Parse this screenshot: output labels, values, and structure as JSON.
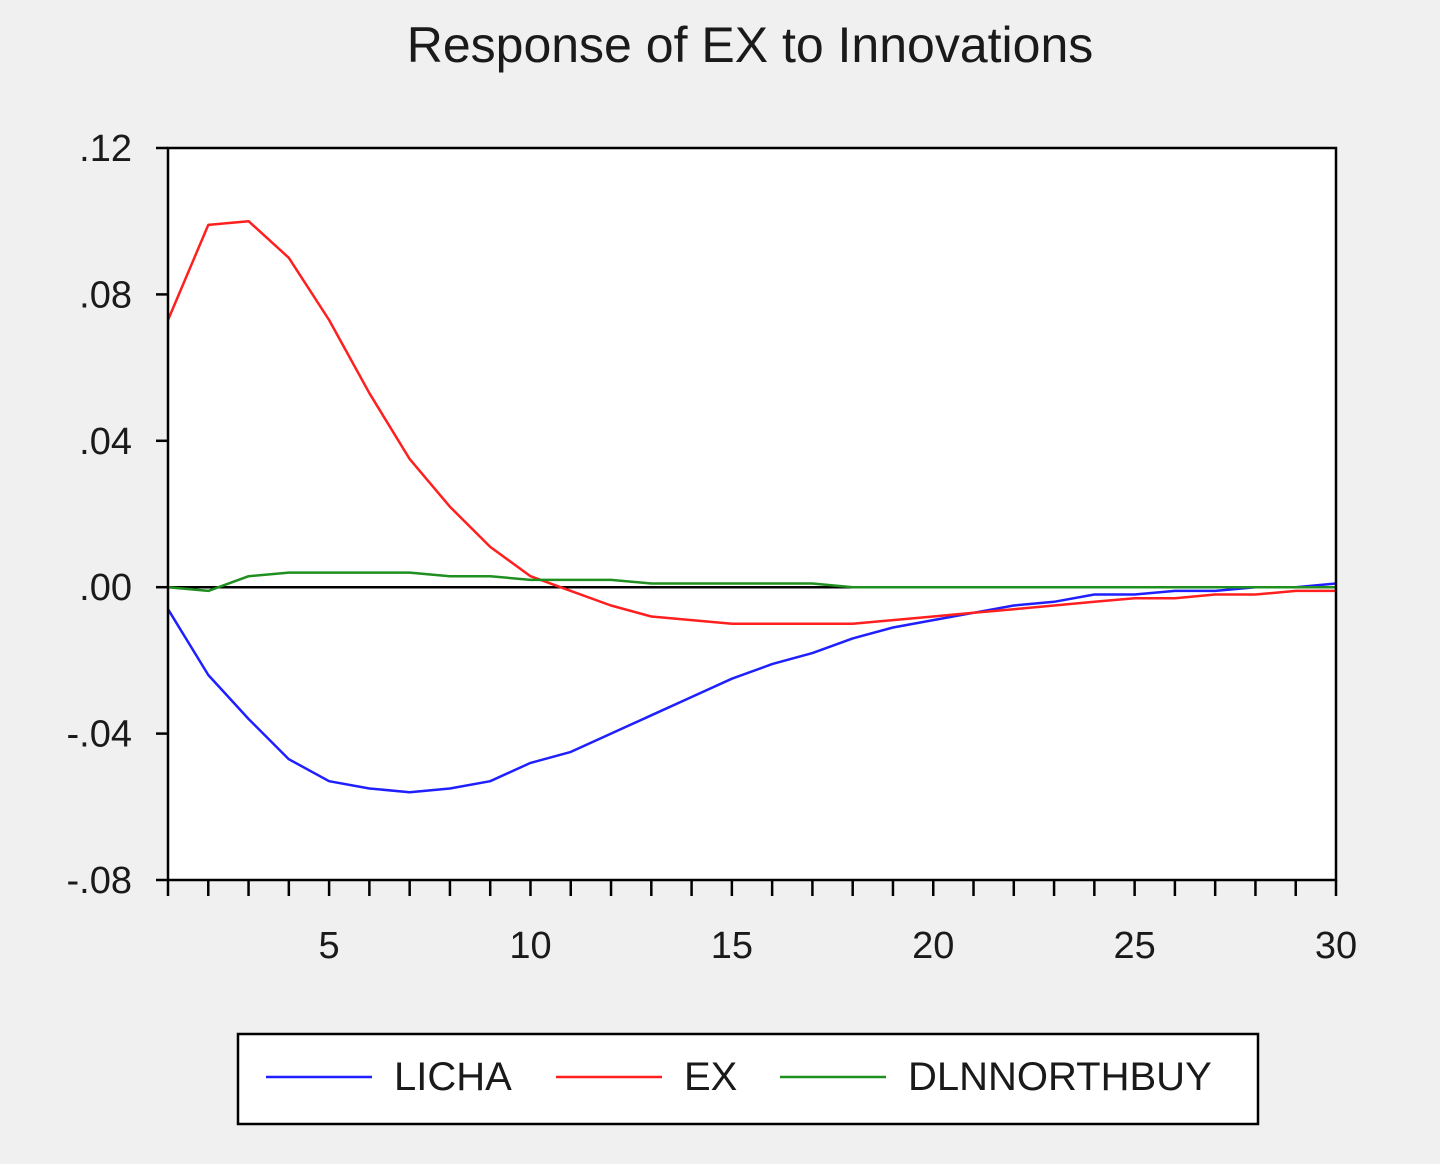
{
  "chart_data": {
    "type": "line",
    "title": "Response of EX to Innovations",
    "xlabel": "",
    "ylabel": "",
    "xlim": [
      1,
      30
    ],
    "ylim": [
      -0.08,
      0.12
    ],
    "x_ticks": [
      5,
      10,
      15,
      20,
      25,
      30
    ],
    "x_tick_labels": [
      "5",
      "10",
      "15",
      "20",
      "25",
      "30"
    ],
    "y_ticks": [
      0.12,
      0.08,
      0.04,
      0.0,
      -0.04,
      -0.08
    ],
    "y_tick_labels": [
      ".12",
      ".08",
      ".04",
      ".00",
      "-.04",
      "-.08"
    ],
    "grid": false,
    "legend_position": "bottom",
    "x": [
      1,
      2,
      3,
      4,
      5,
      6,
      7,
      8,
      9,
      10,
      11,
      12,
      13,
      14,
      15,
      16,
      17,
      18,
      19,
      20,
      21,
      22,
      23,
      24,
      25,
      26,
      27,
      28,
      29,
      30
    ],
    "series": [
      {
        "name": "LICHA",
        "color": "#1f1fff",
        "values": [
          -0.006,
          -0.024,
          -0.036,
          -0.047,
          -0.053,
          -0.055,
          -0.056,
          -0.055,
          -0.053,
          -0.048,
          -0.045,
          -0.04,
          -0.035,
          -0.03,
          -0.025,
          -0.021,
          -0.018,
          -0.014,
          -0.011,
          -0.009,
          -0.007,
          -0.005,
          -0.004,
          -0.002,
          -0.002,
          -0.001,
          -0.001,
          0.0,
          0.0,
          0.001
        ]
      },
      {
        "name": "EX",
        "color": "#ff1f1f",
        "values": [
          0.073,
          0.099,
          0.1,
          0.09,
          0.073,
          0.053,
          0.035,
          0.022,
          0.011,
          0.003,
          -0.001,
          -0.005,
          -0.008,
          -0.009,
          -0.01,
          -0.01,
          -0.01,
          -0.01,
          -0.009,
          -0.008,
          -0.007,
          -0.006,
          -0.005,
          -0.004,
          -0.003,
          -0.003,
          -0.002,
          -0.002,
          -0.001,
          -0.001
        ]
      },
      {
        "name": "DLNNORTHBUY",
        "color": "#1f8f1f",
        "values": [
          0.0,
          -0.001,
          0.003,
          0.004,
          0.004,
          0.004,
          0.004,
          0.003,
          0.003,
          0.002,
          0.002,
          0.002,
          0.001,
          0.001,
          0.001,
          0.001,
          0.001,
          0.0,
          0.0,
          0.0,
          0.0,
          0.0,
          0.0,
          0.0,
          0.0,
          0.0,
          0.0,
          0.0,
          0.0,
          0.0
        ]
      }
    ]
  }
}
